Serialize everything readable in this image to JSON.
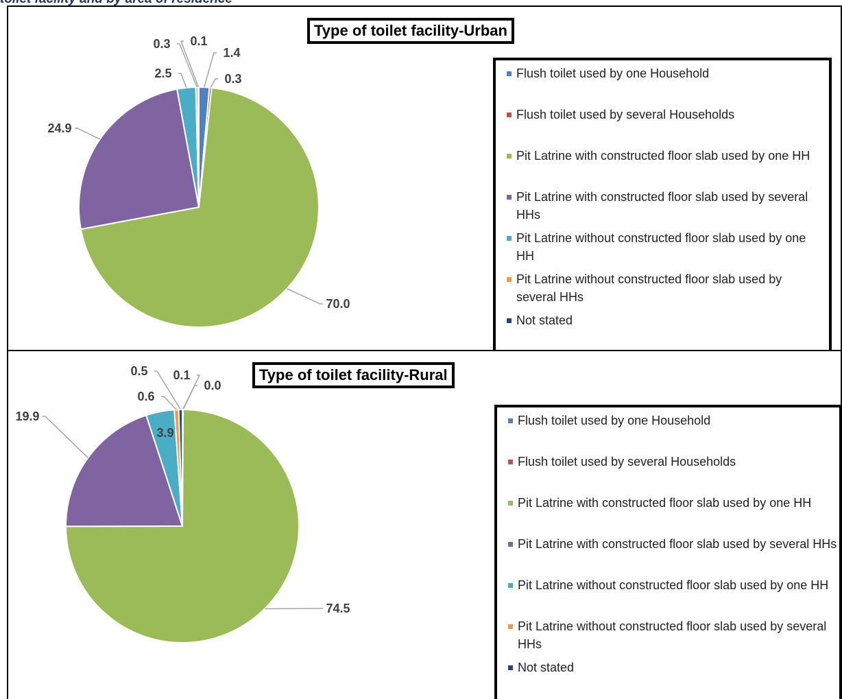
{
  "heading": "toilet facility and by area of residence",
  "chart_data": [
    {
      "type": "pie",
      "title": "Type of toilet facility-Urban",
      "categories": [
        "Flush toilet used by one Household",
        "Flush toilet used by several Households",
        "Pit Latrine with constructed floor slab used by one HH",
        "Pit Latrine with constructed floor slab used by several HHs",
        "Pit Latrine without constructed floor slab used by one HH",
        "Pit Latrine without constructed floor slab used by several HHs",
        "Not stated"
      ],
      "values": [
        1.4,
        0.3,
        70.0,
        24.9,
        2.5,
        0.3,
        0.1
      ],
      "value_labels": [
        "1.4",
        "0.3",
        "70.0",
        "24.9",
        "2.5",
        "0.3",
        "0.1"
      ],
      "colors": [
        "#4f81bd",
        "#c0504d",
        "#9bbb59",
        "#8064a2",
        "#4bacc6",
        "#f79646",
        "#1f497d"
      ]
    },
    {
      "type": "pie",
      "title": "Type of toilet facility-Rural",
      "categories": [
        "Flush toilet used by one Household",
        "Flush toilet used by several Households",
        "Pit Latrine with constructed floor slab used by one HH",
        "Pit Latrine with constructed floor slab used by several HHs",
        "Pit Latrine without constructed floor slab used by one HH",
        "Pit Latrine without constructed floor slab used by several HHs",
        "Not stated"
      ],
      "values": [
        0.1,
        0.0,
        74.5,
        19.9,
        3.9,
        0.6,
        0.5
      ],
      "value_labels": [
        "0.1",
        "0.0",
        "74.5",
        "19.9",
        "3.9",
        "0.6",
        "0.5"
      ],
      "colors": [
        "#4f81bd",
        "#c0504d",
        "#9bbb59",
        "#8064a2",
        "#4bacc6",
        "#f79646",
        "#1f497d"
      ]
    }
  ]
}
